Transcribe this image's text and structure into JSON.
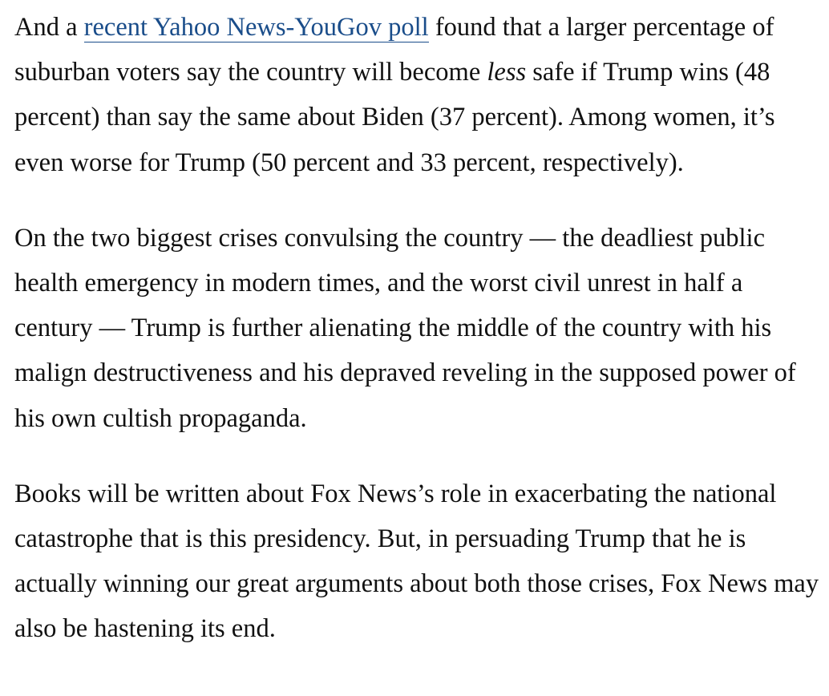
{
  "article": {
    "paragraphs": [
      {
        "before_link": "And a ",
        "link_text": "recent Yahoo News-YouGov poll",
        "after_link": " found that a larger percentage of suburban voters say the country will become ",
        "emphasis": "less",
        "after_emphasis": " safe if Trump wins (48 percent) than say the same about Biden (37 percent). Among women, it’s even worse for Trump (50 percent and 33 percent, respectively)."
      },
      {
        "text": "On the two biggest crises convulsing the country — the deadliest public health emergency in modern times, and the worst civil unrest in half a century — Trump is further alienating the middle of the country with his malign destructiveness and his depraved reveling in the supposed power of his own cultish propaganda."
      },
      {
        "text": "Books will be written about Fox News’s role in exacerbating the national catastrophe that is this presidency. But, in persuading Trump that he is actually winning our great arguments about both those crises, Fox News may also be hastening its end."
      }
    ]
  },
  "colors": {
    "text": "#111111",
    "link": "#1a4d8a",
    "background": "#ffffff"
  }
}
